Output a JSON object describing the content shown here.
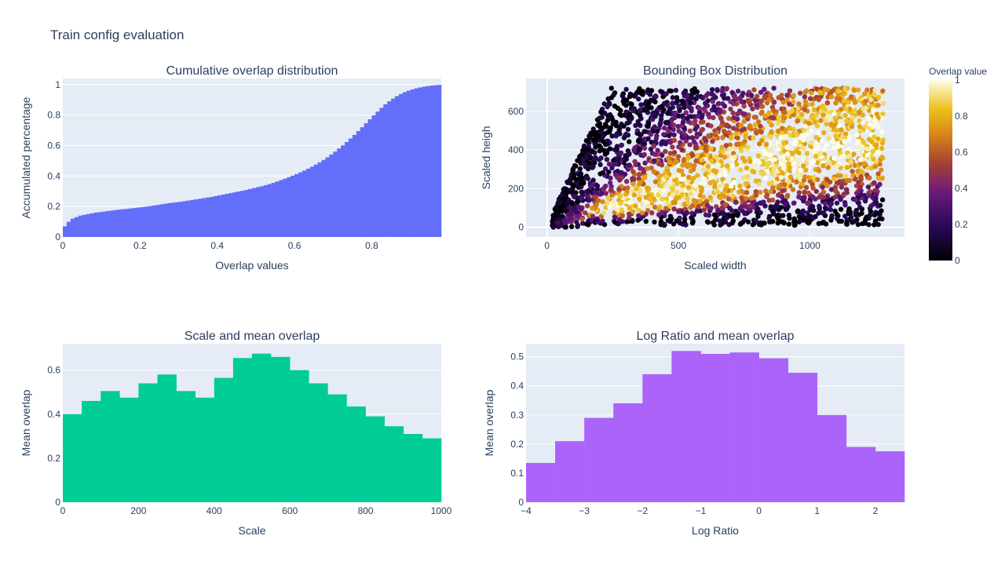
{
  "figure": {
    "title": "Train config evaluation",
    "colors": {
      "plot_bg": "#e5ecf6",
      "grid": "#ffffff",
      "text": "#2a3f5f"
    }
  },
  "chart_data": [
    {
      "id": "cumulative",
      "type": "bar",
      "title": "Cumulative overlap distribution",
      "xlabel": "Overlap values",
      "ylabel": "Accumulated percentage",
      "xlim": [
        0,
        0.98
      ],
      "ylim": [
        0,
        1.04
      ],
      "xticks": [
        0,
        0.2,
        0.4,
        0.6,
        0.8
      ],
      "yticks": [
        0,
        0.2,
        0.4,
        0.6,
        0.8,
        1
      ],
      "color": "#636efa",
      "bin_width": 0.01,
      "values": [
        0.07,
        0.1,
        0.12,
        0.13,
        0.14,
        0.145,
        0.15,
        0.155,
        0.16,
        0.163,
        0.166,
        0.17,
        0.173,
        0.176,
        0.179,
        0.182,
        0.184,
        0.187,
        0.19,
        0.193,
        0.196,
        0.199,
        0.202,
        0.206,
        0.21,
        0.214,
        0.218,
        0.222,
        0.225,
        0.228,
        0.231,
        0.235,
        0.239,
        0.243,
        0.247,
        0.251,
        0.255,
        0.259,
        0.263,
        0.268,
        0.273,
        0.278,
        0.283,
        0.288,
        0.293,
        0.298,
        0.303,
        0.309,
        0.315,
        0.321,
        0.327,
        0.333,
        0.34,
        0.347,
        0.355,
        0.364,
        0.373,
        0.382,
        0.392,
        0.402,
        0.413,
        0.424,
        0.436,
        0.448,
        0.461,
        0.475,
        0.49,
        0.506,
        0.523,
        0.541,
        0.56,
        0.58,
        0.601,
        0.623,
        0.646,
        0.67,
        0.695,
        0.72,
        0.746,
        0.772,
        0.798,
        0.823,
        0.847,
        0.87,
        0.89,
        0.908,
        0.924,
        0.938,
        0.95,
        0.96,
        0.968,
        0.975,
        0.981,
        0.986,
        0.99,
        0.993,
        0.996,
        0.998
      ]
    },
    {
      "id": "bbox",
      "type": "scatter",
      "title": "Bounding Box Distribution",
      "xlabel": "Scaled width",
      "ylabel": "Scaled heigh",
      "xlim": [
        -80,
        1360
      ],
      "ylim": [
        -50,
        770
      ],
      "xticks": [
        0,
        500,
        1000
      ],
      "yticks": [
        0,
        200,
        400,
        600
      ],
      "data_extent": {
        "x": [
          0,
          1280
        ],
        "y": [
          0,
          720
        ]
      },
      "colorscale": "Plasma-like (black → purple → orange → yellow → white)",
      "colorbar": {
        "title": "Overlap value",
        "range": [
          0,
          1
        ],
        "ticks": [
          0,
          0.2,
          0.4,
          0.6,
          0.8,
          1
        ]
      }
    },
    {
      "id": "scale",
      "type": "bar",
      "title": "Scale and mean overlap",
      "xlabel": "Scale",
      "ylabel": "Mean overlap",
      "xlim": [
        0,
        1000
      ],
      "ylim": [
        0,
        0.72
      ],
      "xticks": [
        0,
        200,
        400,
        600,
        800,
        1000
      ],
      "yticks": [
        0,
        0.2,
        0.4,
        0.6
      ],
      "color": "#00cc96",
      "bin_start": 0,
      "bin_width": 50,
      "values": [
        0.4,
        0.46,
        0.505,
        0.475,
        0.54,
        0.58,
        0.505,
        0.475,
        0.565,
        0.655,
        0.675,
        0.66,
        0.6,
        0.54,
        0.49,
        0.435,
        0.39,
        0.345,
        0.31,
        0.29
      ]
    },
    {
      "id": "logratio",
      "type": "bar",
      "title": "Log Ratio and mean overlap",
      "xlabel": "Log Ratio",
      "ylabel": "Mean overlap",
      "xlim": [
        -4,
        2.5
      ],
      "ylim": [
        0,
        0.545
      ],
      "xticks": [
        -4,
        -3,
        -2,
        -1,
        0,
        1,
        2
      ],
      "xtick_labels": [
        "−4",
        "−3",
        "−2",
        "−1",
        "0",
        "1",
        "2"
      ],
      "yticks": [
        0,
        0.1,
        0.2,
        0.3,
        0.4,
        0.5
      ],
      "color": "#ab63fa",
      "bin_start": -4,
      "bin_width": 0.5,
      "values": [
        0.135,
        0.21,
        0.29,
        0.34,
        0.44,
        0.52,
        0.51,
        0.515,
        0.495,
        0.445,
        0.3,
        0.19,
        0.175
      ]
    }
  ]
}
